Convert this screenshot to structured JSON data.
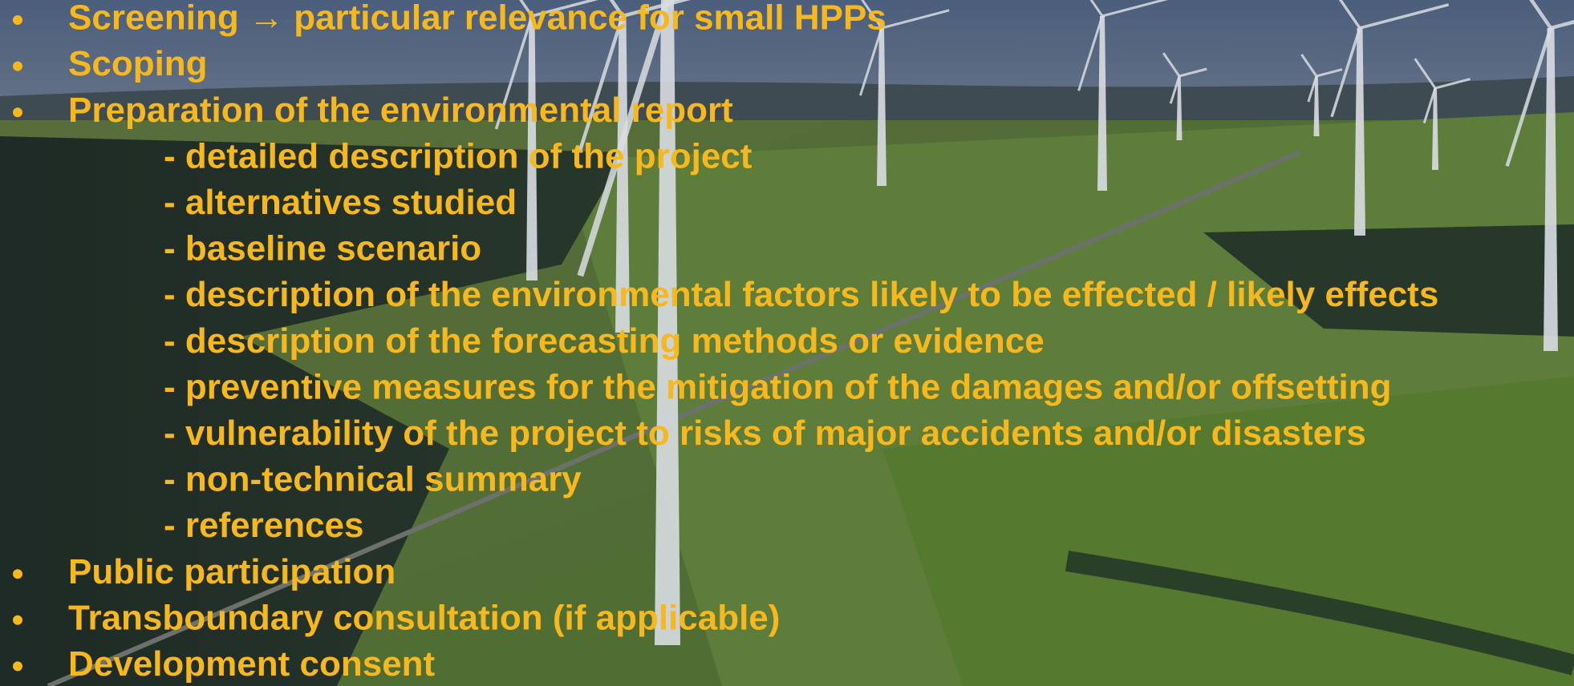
{
  "items": [
    {
      "text": "Screening → particular relevance for small HPPs",
      "sub_items": []
    },
    {
      "text": "Scoping",
      "sub_items": []
    },
    {
      "text": "Preparation of the environmental report",
      "sub_items": [
        "- detailed description of the project",
        "- alternatives studied",
        "- baseline scenario",
        "- description of the environmental factors likely to be effected / likely effects",
        "- description of the forecasting methods or evidence",
        "- preventive measures for the mitigation of the damages and/or offsetting",
        "- vulnerability of the project to risks of major accidents and/or disasters",
        "- non-technical summary",
        "- references"
      ]
    },
    {
      "text": "Public participation",
      "sub_items": []
    },
    {
      "text": "Transboundary consultation (if applicable)",
      "sub_items": []
    },
    {
      "text": "Development consent",
      "sub_items": []
    }
  ]
}
